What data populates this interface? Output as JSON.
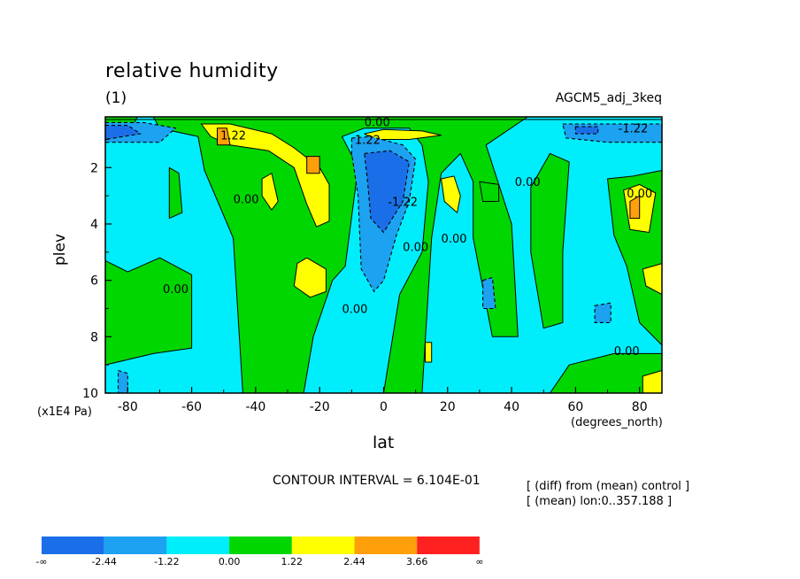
{
  "chart_data": {
    "type": "heatmap",
    "title": "relative humidity",
    "subtitle": "(1)",
    "run_label": "AGCM5_adj_3keq",
    "xlabel": "lat",
    "xunit": "(degrees_north)",
    "ylabel": "plev",
    "yunit": "(x1E4 Pa)",
    "xlim": [
      -87,
      87
    ],
    "ylim": [
      10,
      0.2
    ],
    "x_ticks": [
      -80,
      -60,
      -40,
      -20,
      0,
      20,
      40,
      60,
      80
    ],
    "y_ticks": [
      2,
      4,
      6,
      8,
      10
    ],
    "contour_interval_text": "CONTOUR INTERVAL = 6.104E-01",
    "notes": [
      "[ (diff) from (mean) control ]",
      "[ (mean) lon:0..357.188 ]"
    ],
    "colorbar": {
      "labels": [
        "-∞",
        "-2.44",
        "-1.22",
        "0.00",
        "1.22",
        "2.44",
        "3.66",
        "∞"
      ],
      "colors": [
        "#1a6fe8",
        "#1ca2f0",
        "#00eefb",
        "#00d700",
        "#ffff00",
        "#ffa00a",
        "#ff2020"
      ]
    },
    "contour_labels": [
      {
        "text": "0.00",
        "lat": -2,
        "plev": 0.38
      },
      {
        "text": "1.22",
        "lat": -5,
        "plev": 1.0
      },
      {
        "text": "1.22",
        "lat": -47,
        "plev": 0.85
      },
      {
        "text": "-1.22",
        "lat": 78,
        "plev": 0.6
      },
      {
        "text": "0.00",
        "lat": -43,
        "plev": 3.1
      },
      {
        "text": "-1.22",
        "lat": 6,
        "plev": 3.2
      },
      {
        "text": "0.00",
        "lat": 10,
        "plev": 4.8
      },
      {
        "text": "0.00",
        "lat": 22,
        "plev": 4.5
      },
      {
        "text": "0.00",
        "lat": 45,
        "plev": 2.5
      },
      {
        "text": "0.00",
        "lat": 80,
        "plev": 2.9
      },
      {
        "text": "0.00",
        "lat": -65,
        "plev": 6.3
      },
      {
        "text": "0.00",
        "lat": -9,
        "plev": 7.0
      },
      {
        "text": "0.00",
        "lat": 76,
        "plev": 8.5
      }
    ],
    "regions": [
      {
        "value": -0.6,
        "color": "#00eefb",
        "cells": [
          [
            -87,
            0.2,
            87,
            10
          ]
        ]
      },
      {
        "value": 0.6,
        "color": "#00d700",
        "points": [
          [
            -72,
            0.2
          ],
          [
            -70,
            0.6
          ],
          [
            -58,
            0.9
          ],
          [
            -56,
            2.1
          ],
          [
            -47,
            4.5
          ],
          [
            -44,
            10
          ],
          [
            -25,
            10
          ],
          [
            -22,
            8
          ],
          [
            -16,
            6
          ],
          [
            -12,
            5.5
          ],
          [
            -8,
            2
          ],
          [
            -13,
            0.9
          ],
          [
            -6,
            0.6
          ],
          [
            8,
            0.6
          ],
          [
            12,
            1.2
          ],
          [
            14,
            2.5
          ],
          [
            12,
            5
          ],
          [
            5,
            6.5
          ],
          [
            0,
            10
          ],
          [
            12,
            10
          ],
          [
            15,
            4.5
          ],
          [
            18,
            2.2
          ],
          [
            24,
            1.5
          ],
          [
            28,
            2.5
          ],
          [
            28,
            4.5
          ],
          [
            34,
            8
          ],
          [
            42,
            8
          ],
          [
            40,
            4
          ],
          [
            32,
            1.2
          ],
          [
            45,
            0.2
          ]
        ]
      },
      {
        "value": 0.6,
        "color": "#00d700",
        "points": [
          [
            52,
            1.5
          ],
          [
            46,
            2.7
          ],
          [
            46,
            5
          ],
          [
            50,
            7.7
          ],
          [
            56,
            7.5
          ],
          [
            56,
            5
          ],
          [
            58,
            1.8
          ]
        ]
      },
      {
        "value": 0.6,
        "color": "#00d700",
        "points": [
          [
            70,
            2.4
          ],
          [
            78,
            2.3
          ],
          [
            87,
            2.1
          ],
          [
            87,
            8.3
          ],
          [
            80,
            7.5
          ],
          [
            76,
            5.5
          ],
          [
            72,
            4.4
          ]
        ]
      },
      {
        "value": 0.6,
        "color": "#00d700",
        "points": [
          [
            -87,
            5.3
          ],
          [
            -80,
            5.7
          ],
          [
            -70,
            5.2
          ],
          [
            -60,
            5.8
          ],
          [
            -60,
            8.4
          ],
          [
            -72,
            8.6
          ],
          [
            -87,
            9
          ]
        ]
      },
      {
        "value": 0.6,
        "color": "#00d700",
        "points": [
          [
            52,
            10
          ],
          [
            58,
            9
          ],
          [
            72,
            8.6
          ],
          [
            87,
            8.6
          ],
          [
            87,
            10
          ]
        ]
      },
      {
        "value": 0.6,
        "color": "#00d700",
        "points": [
          [
            -77,
            0.2
          ],
          [
            -87,
            0.2
          ],
          [
            -87,
            0.5
          ],
          [
            -78,
            0.45
          ]
        ]
      },
      {
        "value": 0.6,
        "color": "#00d700",
        "points": [
          [
            -67,
            2
          ],
          [
            -64,
            2.2
          ],
          [
            -63,
            3.6
          ],
          [
            -67,
            3.8
          ]
        ]
      },
      {
        "value": 0.6,
        "color": "#00d700",
        "points": [
          [
            30,
            2.5
          ],
          [
            36,
            2.6
          ],
          [
            36,
            3.2
          ],
          [
            31,
            3.2
          ]
        ]
      },
      {
        "value": 1.8,
        "color": "#ffff00",
        "points": [
          [
            -57,
            0.45
          ],
          [
            -48,
            0.45
          ],
          [
            -35,
            0.8
          ],
          [
            -28,
            1.3
          ],
          [
            -20,
            2.0
          ],
          [
            -17,
            2.6
          ],
          [
            -17,
            3.9
          ],
          [
            -21,
            4.1
          ],
          [
            -24,
            3.3
          ],
          [
            -28,
            2.0
          ],
          [
            -36,
            1.4
          ],
          [
            -48,
            1.2
          ],
          [
            -54,
            0.9
          ]
        ]
      },
      {
        "value": 1.8,
        "color": "#ffff00",
        "points": [
          [
            -6,
            0.8
          ],
          [
            0,
            0.65
          ],
          [
            12,
            0.7
          ],
          [
            18,
            0.85
          ],
          [
            8,
            1.0
          ],
          [
            -3,
            1.0
          ]
        ]
      },
      {
        "value": 1.8,
        "color": "#ffff00",
        "points": [
          [
            -27,
            5.4
          ],
          [
            -24,
            5.2
          ],
          [
            -18,
            5.6
          ],
          [
            -18,
            6.4
          ],
          [
            -23,
            6.6
          ],
          [
            -28,
            6.2
          ]
        ]
      },
      {
        "value": 1.8,
        "color": "#ffff00",
        "points": [
          [
            -38,
            2.4
          ],
          [
            -35,
            2.2
          ],
          [
            -33,
            3.2
          ],
          [
            -35,
            3.5
          ],
          [
            -38,
            3.0
          ]
        ]
      },
      {
        "value": 1.8,
        "color": "#ffff00",
        "points": [
          [
            18,
            2.4
          ],
          [
            22,
            2.3
          ],
          [
            24,
            3.0
          ],
          [
            23,
            3.6
          ],
          [
            19,
            3.2
          ]
        ]
      },
      {
        "value": 1.8,
        "color": "#ffff00",
        "points": [
          [
            75,
            2.8
          ],
          [
            80,
            2.6
          ],
          [
            85,
            2.9
          ],
          [
            83,
            4.3
          ],
          [
            77,
            4.2
          ]
        ]
      },
      {
        "value": 1.8,
        "color": "#ffff00",
        "points": [
          [
            81,
            5.6
          ],
          [
            87,
            5.4
          ],
          [
            87,
            6.5
          ],
          [
            82,
            6.2
          ]
        ]
      },
      {
        "value": 1.8,
        "color": "#ffff00",
        "points": [
          [
            13,
            8.2
          ],
          [
            15,
            8.2
          ],
          [
            15,
            8.9
          ],
          [
            13,
            8.9
          ]
        ]
      },
      {
        "value": 1.8,
        "color": "#ffff00",
        "points": [
          [
            81,
            9.4
          ],
          [
            87,
            9.2
          ],
          [
            87,
            10
          ],
          [
            81,
            10
          ]
        ]
      },
      {
        "value": 3.0,
        "color": "#ffa00a",
        "points": [
          [
            -52,
            0.6
          ],
          [
            -49,
            0.6
          ],
          [
            -48,
            1.2
          ],
          [
            -52,
            1.2
          ]
        ]
      },
      {
        "value": 3.0,
        "color": "#ffa00a",
        "points": [
          [
            -24,
            1.6
          ],
          [
            -20,
            1.6
          ],
          [
            -20,
            2.2
          ],
          [
            -24,
            2.2
          ]
        ]
      },
      {
        "value": 3.0,
        "color": "#ffa00a",
        "points": [
          [
            77,
            3.2
          ],
          [
            80,
            3.0
          ],
          [
            80,
            3.8
          ],
          [
            77,
            3.8
          ]
        ]
      },
      {
        "value": -1.8,
        "color": "#1ca2f0",
        "points": [
          [
            -10,
            0.95
          ],
          [
            -4,
            0.9
          ],
          [
            6,
            1.2
          ],
          [
            10,
            1.7
          ],
          [
            8,
            3.2
          ],
          [
            4,
            4.4
          ],
          [
            0,
            6.0
          ],
          [
            -3,
            6.4
          ],
          [
            -7,
            5.6
          ],
          [
            -8,
            3.0
          ],
          [
            -10,
            1.5
          ]
        ]
      },
      {
        "value": -1.8,
        "color": "#1ca2f0",
        "points": [
          [
            -87,
            0.4
          ],
          [
            -75,
            0.4
          ],
          [
            -65,
            0.6
          ],
          [
            -70,
            1.1
          ],
          [
            -87,
            1.1
          ]
        ]
      },
      {
        "value": -1.8,
        "color": "#1ca2f0",
        "points": [
          [
            56,
            0.45
          ],
          [
            70,
            0.45
          ],
          [
            87,
            0.45
          ],
          [
            87,
            1.1
          ],
          [
            70,
            1.1
          ],
          [
            57,
            0.95
          ]
        ]
      },
      {
        "value": -1.8,
        "color": "#1ca2f0",
        "points": [
          [
            31,
            6.0
          ],
          [
            34,
            5.9
          ],
          [
            35,
            7.0
          ],
          [
            31,
            7.0
          ]
        ]
      },
      {
        "value": -1.8,
        "color": "#1ca2f0",
        "points": [
          [
            66,
            6.9
          ],
          [
            71,
            6.8
          ],
          [
            71,
            7.5
          ],
          [
            66,
            7.5
          ]
        ]
      },
      {
        "value": -1.8,
        "color": "#1ca2f0",
        "points": [
          [
            -83,
            9.2
          ],
          [
            -80,
            9.3
          ],
          [
            -80,
            10
          ],
          [
            -83,
            10
          ]
        ]
      },
      {
        "value": -3.0,
        "color": "#1a6fe8",
        "points": [
          [
            -6,
            1.5
          ],
          [
            2,
            1.4
          ],
          [
            8,
            1.8
          ],
          [
            6,
            3.2
          ],
          [
            0,
            4.3
          ],
          [
            -4,
            3.8
          ],
          [
            -5,
            2.5
          ]
        ]
      },
      {
        "value": -3.0,
        "color": "#1a6fe8",
        "points": [
          [
            -87,
            0.5
          ],
          [
            -80,
            0.5
          ],
          [
            -76,
            0.8
          ],
          [
            -87,
            1.0
          ]
        ]
      },
      {
        "value": -3.0,
        "color": "#1a6fe8",
        "points": [
          [
            60,
            0.55
          ],
          [
            67,
            0.55
          ],
          [
            67,
            0.8
          ],
          [
            60,
            0.8
          ]
        ]
      }
    ]
  }
}
